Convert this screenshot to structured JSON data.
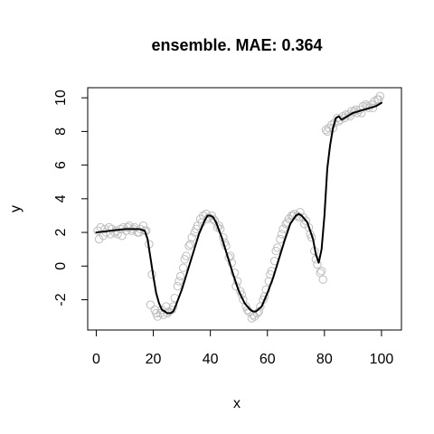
{
  "chart_data": {
    "type": "scatter",
    "title": "ensemble. MAE: 0.364",
    "xlabel": "x",
    "ylabel": "y",
    "xlim": [
      -3,
      107
    ],
    "ylim": [
      -3.8,
      10.6
    ],
    "x_ticks": [
      0,
      20,
      40,
      60,
      80,
      100
    ],
    "y_ticks": [
      -2,
      0,
      2,
      4,
      6,
      8,
      10
    ],
    "x_tick_labels": [
      "0",
      "20",
      "40",
      "60",
      "80",
      "100"
    ],
    "y_tick_labels": [
      "-2",
      "0",
      "2",
      "4",
      "6",
      "8",
      "10"
    ],
    "grid": false,
    "legend": "none",
    "colors": {
      "points": "#bebebe",
      "line": "#000000",
      "axis": "#000000"
    },
    "series": [
      {
        "kind": "points",
        "x": [
          0.5,
          1.5,
          2.5,
          3.5,
          4.5,
          5.5,
          6.5,
          7.5,
          8.5,
          9.5,
          10.5,
          11.5,
          12.5,
          13.5,
          14.5,
          15.5,
          16.5,
          17.5,
          18.5,
          19.5,
          20.5,
          21.5,
          22.5,
          23.5,
          24.5,
          25.5,
          26.5,
          27.5,
          28.5,
          29.5,
          30.5,
          31.5,
          32.5,
          33.5,
          34.5,
          35.5,
          36.5,
          37.5,
          38.5,
          39.5,
          40.5,
          41.5,
          42.5,
          43.5,
          44.5,
          45.5,
          46.5,
          47.5,
          48.5,
          49.5,
          50.5,
          51.5,
          52.5,
          53.5,
          54.5,
          55.5,
          56.5,
          57.5,
          58.5,
          59.5,
          60.5,
          61.5,
          62.5,
          63.5,
          64.5,
          65.5,
          66.5,
          67.5,
          68.5,
          69.5,
          70.5,
          71.5,
          72.5,
          73.5,
          74.5,
          75.5,
          76.5,
          77.5,
          78.5,
          79.5,
          80.5,
          81.5,
          82.5,
          83.5,
          84.5,
          85.5,
          86.5,
          87.5,
          88.5,
          89.5,
          90.5,
          91.5,
          92.5,
          93.5,
          94.5,
          95.5,
          96.5,
          97.5,
          98.5,
          99.5,
          1.0,
          3.0,
          5.0,
          7.0,
          9.0,
          11.0,
          13.0,
          15.0,
          17.0,
          19.0,
          21.0,
          23.0,
          25.0,
          27.0,
          29.0,
          31.0,
          33.0,
          35.0,
          37.0,
          39.0,
          41.0,
          43.0,
          45.0,
          47.0,
          49.0,
          51.0,
          53.0,
          55.0,
          57.0,
          59.0,
          61.0,
          63.0,
          65.0,
          67.0,
          69.0,
          71.0,
          73.0,
          75.0,
          77.0,
          79.0,
          81.0,
          83.0,
          85.0,
          87.0,
          89.0,
          91.0,
          93.0,
          95.0,
          97.0,
          99.0
        ],
        "y": [
          2.1,
          2.3,
          1.8,
          2.0,
          2.3,
          2.2,
          2.0,
          1.9,
          2.2,
          2.3,
          2.1,
          2.4,
          2.1,
          2.3,
          2.0,
          2.2,
          2.4,
          2.1,
          1.3,
          -0.5,
          -2.6,
          -3.0,
          -2.8,
          -2.9,
          -2.4,
          -2.7,
          -2.6,
          -1.9,
          -1.2,
          -0.6,
          -0.1,
          0.6,
          1.2,
          1.7,
          2.0,
          2.4,
          2.8,
          3.0,
          3.1,
          2.9,
          3.0,
          2.7,
          2.3,
          2.2,
          1.7,
          1.2,
          0.5,
          0.2,
          -0.4,
          -0.9,
          -1.5,
          -2.0,
          -2.4,
          -2.7,
          -3.1,
          -3.0,
          -2.8,
          -2.4,
          -2.0,
          -1.4,
          -0.9,
          -0.3,
          0.3,
          1.1,
          1.6,
          2.2,
          2.5,
          2.8,
          3.0,
          3.1,
          3.0,
          3.2,
          2.9,
          2.7,
          2.3,
          1.7,
          0.9,
          0.1,
          -0.4,
          -0.8,
          8.1,
          8.2,
          8.4,
          8.5,
          8.8,
          8.7,
          8.9,
          9.0,
          9.0,
          9.2,
          9.2,
          9.1,
          9.3,
          9.5,
          9.6,
          9.4,
          9.6,
          9.8,
          9.9,
          10.1,
          1.6,
          2.2,
          1.9,
          2.1,
          1.8,
          2.3,
          2.2,
          2.0,
          2.1,
          -2.3,
          -2.8,
          -2.6,
          -2.8,
          -2.4,
          -0.9,
          0.4,
          1.3,
          2.2,
          2.6,
          2.8,
          2.8,
          2.4,
          1.4,
          0.6,
          -1.2,
          -1.7,
          -2.6,
          -2.9,
          -2.7,
          -1.8,
          -0.5,
          0.9,
          1.9,
          2.6,
          3.0,
          2.9,
          2.5,
          1.9,
          0.4,
          -0.3,
          8.0,
          8.2,
          8.6,
          8.8,
          8.9,
          9.3,
          9.1,
          9.5,
          9.4,
          9.9
        ]
      },
      {
        "kind": "line",
        "x": [
          0,
          5,
          10,
          15,
          17,
          18,
          19,
          20,
          21,
          22,
          23,
          24,
          25,
          26,
          27,
          28,
          30,
          32,
          34,
          36,
          38,
          39,
          40,
          41,
          42,
          44,
          46,
          48,
          50,
          52,
          54,
          55,
          56,
          58,
          60,
          62,
          64,
          66,
          68,
          70,
          71,
          72,
          74,
          76,
          77,
          78,
          79,
          80,
          81,
          82,
          83,
          84,
          85,
          86,
          87,
          88,
          90,
          92,
          94,
          96,
          98,
          100
        ],
        "y": [
          2.0,
          2.1,
          2.2,
          2.2,
          2.1,
          1.6,
          0.5,
          -0.6,
          -1.6,
          -2.2,
          -2.6,
          -2.7,
          -2.8,
          -2.8,
          -2.7,
          -2.3,
          -1.4,
          -0.3,
          0.8,
          1.9,
          2.7,
          3.0,
          3.0,
          2.9,
          2.6,
          1.7,
          0.6,
          -0.5,
          -1.5,
          -2.2,
          -2.6,
          -2.7,
          -2.7,
          -2.4,
          -1.6,
          -0.7,
          0.4,
          1.5,
          2.5,
          3.0,
          3.1,
          3.0,
          2.6,
          1.6,
          0.7,
          0.2,
          1.0,
          3.0,
          5.8,
          7.2,
          8.2,
          8.8,
          8.9,
          8.7,
          8.8,
          8.9,
          9.1,
          9.2,
          9.3,
          9.4,
          9.5,
          9.7
        ]
      }
    ]
  }
}
